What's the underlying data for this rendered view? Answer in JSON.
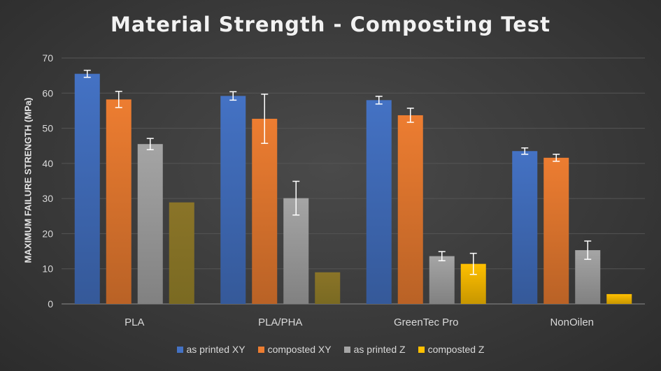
{
  "chart_data": {
    "type": "bar",
    "title": "Material Strength - Composting Test",
    "ylabel": "MAXIMUM FAILURE STRENGTH (MPa)",
    "xlabel": "",
    "ylim": [
      0,
      70
    ],
    "yticks": [
      0,
      10,
      20,
      30,
      40,
      50,
      60,
      70
    ],
    "grid": true,
    "legend_position": "bottom",
    "categories": [
      "PLA",
      "PLA/PHA",
      "GreenTec Pro",
      "NonOilen"
    ],
    "series": [
      {
        "name": "as printed XY",
        "color": "#4472c4",
        "values": [
          65.5,
          59.2,
          58.0,
          43.5
        ],
        "errors": [
          1.0,
          1.2,
          1.1,
          0.9
        ]
      },
      {
        "name": "composted XY",
        "color": "#ed7d31",
        "values": [
          58.2,
          52.7,
          53.7,
          41.6
        ],
        "errors": [
          2.3,
          7.0,
          2.0,
          1.0
        ]
      },
      {
        "name": "as printed Z",
        "color": "#a5a5a5",
        "values": [
          45.5,
          30.1,
          13.6,
          15.3
        ],
        "errors": [
          1.6,
          4.8,
          1.3,
          2.6
        ]
      },
      {
        "name": "composted Z",
        "color": "#ffc000",
        "values": [
          28.9,
          9.0,
          11.4,
          2.8
        ],
        "errors": [
          null,
          null,
          3.0,
          null
        ]
      }
    ]
  }
}
